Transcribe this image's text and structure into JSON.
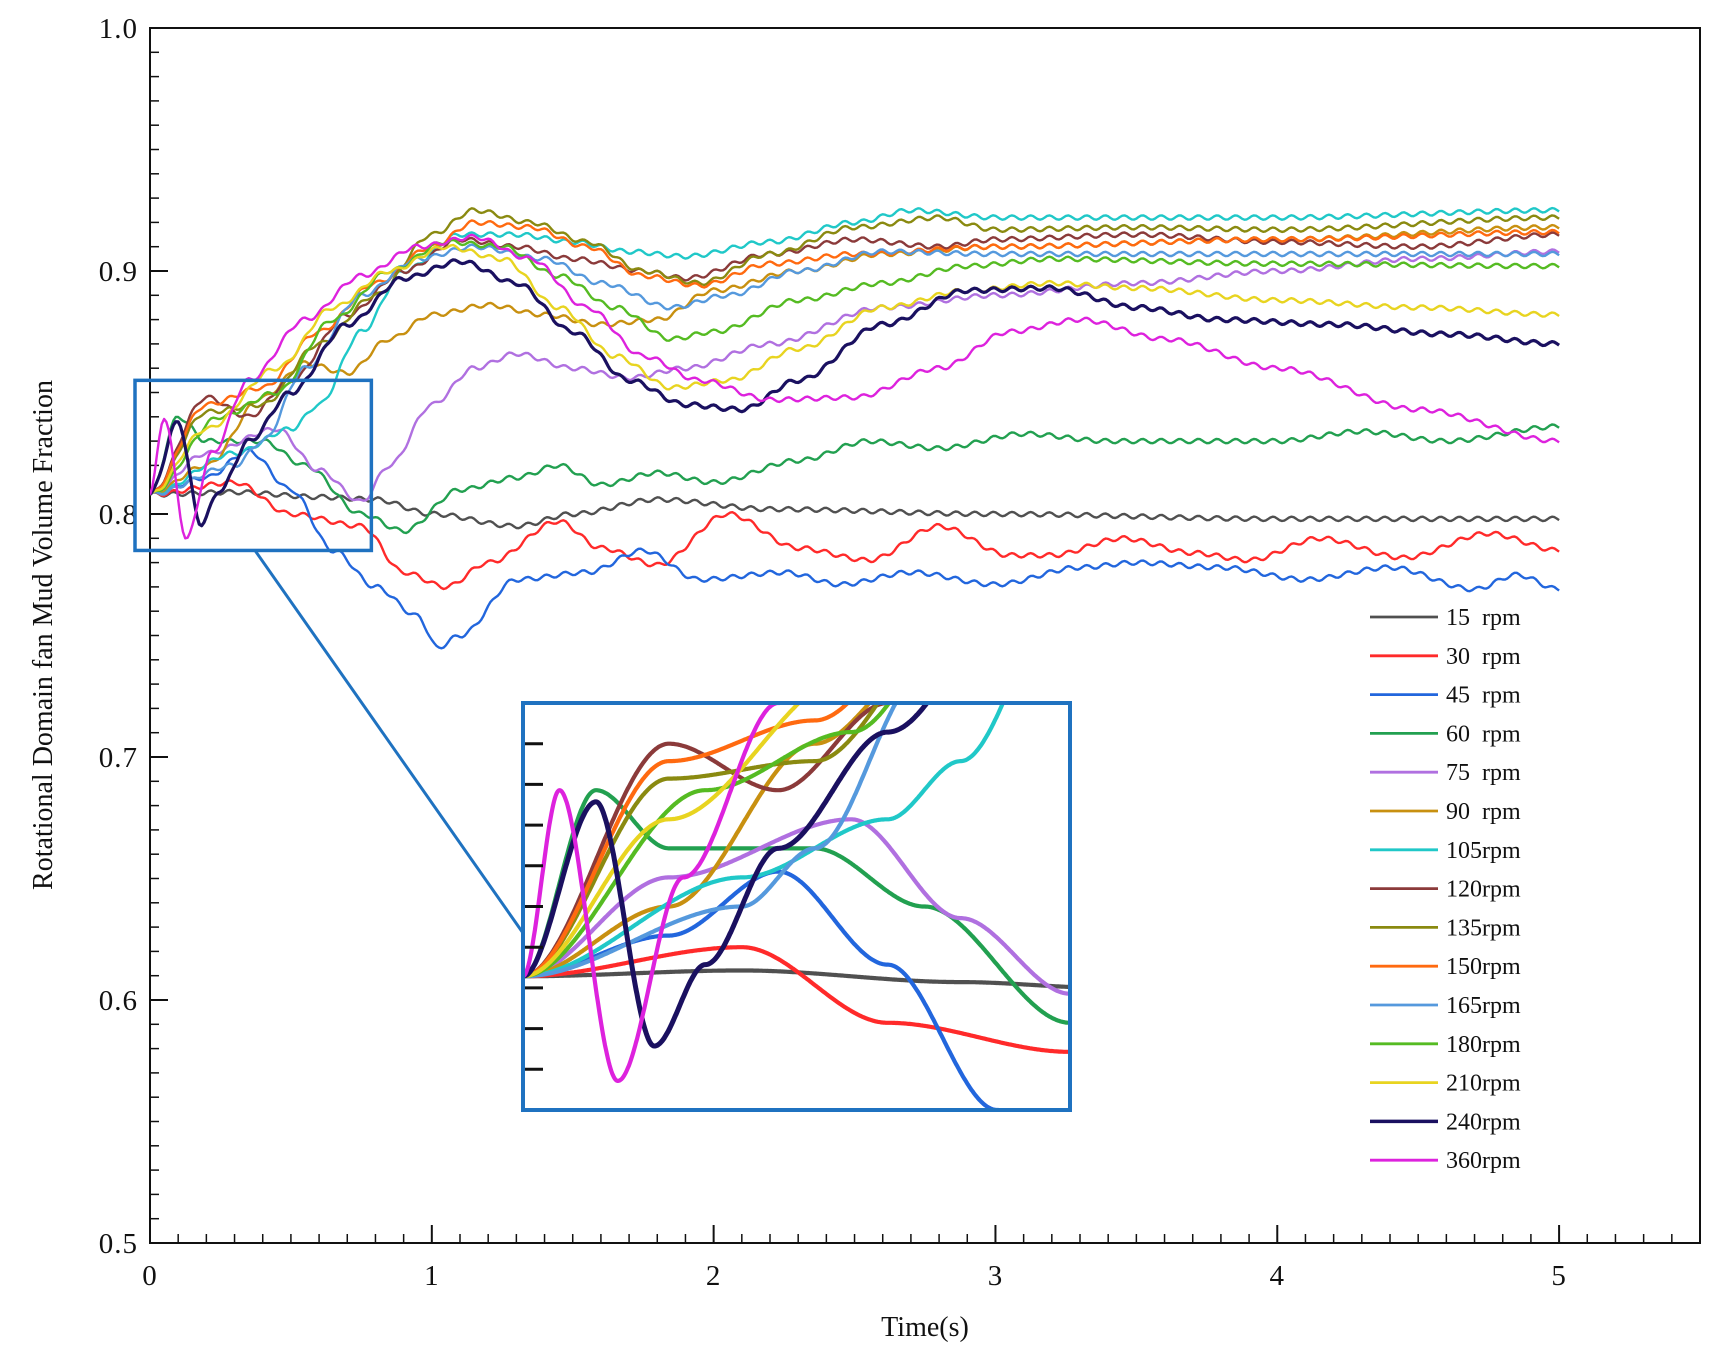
{
  "chart_data": {
    "type": "line",
    "title": "",
    "xlabel": "Time(s)",
    "ylabel": "Rotational Domain fan Mud Volume Fraction",
    "xlim": [
      0,
      5.5
    ],
    "ylim": [
      0.5,
      1.0
    ],
    "xticks": [
      "0",
      "1",
      "2",
      "3",
      "4",
      "5"
    ],
    "yticks": [
      "0.5",
      "0.6",
      "0.7",
      "0.8",
      "0.9",
      "1.0"
    ],
    "grid": false,
    "legend_position": "bottom-right",
    "inset": {
      "description": "zoom of early transient",
      "x_range": [
        0,
        0.75
      ],
      "y_range": [
        0.785,
        0.855
      ]
    },
    "series": [
      {
        "name": "15  rpm",
        "color": "#505050",
        "points": [
          [
            0,
            0.808
          ],
          [
            0.3,
            0.809
          ],
          [
            0.6,
            0.807
          ],
          [
            0.8,
            0.806
          ],
          [
            1.0,
            0.8
          ],
          [
            1.3,
            0.795
          ],
          [
            1.5,
            0.8
          ],
          [
            1.8,
            0.806
          ],
          [
            2.2,
            0.802
          ],
          [
            3.0,
            0.8
          ],
          [
            4.0,
            0.798
          ],
          [
            5.0,
            0.798
          ]
        ]
      },
      {
        "name": "30  rpm",
        "color": "#ff2a2a",
        "points": [
          [
            0,
            0.808
          ],
          [
            0.3,
            0.813
          ],
          [
            0.5,
            0.8
          ],
          [
            0.75,
            0.795
          ],
          [
            0.9,
            0.776
          ],
          [
            1.05,
            0.77
          ],
          [
            1.2,
            0.78
          ],
          [
            1.45,
            0.797
          ],
          [
            1.6,
            0.786
          ],
          [
            1.8,
            0.779
          ],
          [
            2.05,
            0.8
          ],
          [
            2.3,
            0.786
          ],
          [
            2.55,
            0.781
          ],
          [
            2.8,
            0.795
          ],
          [
            3.05,
            0.783
          ],
          [
            3.2,
            0.783
          ],
          [
            3.45,
            0.79
          ],
          [
            3.7,
            0.784
          ],
          [
            3.9,
            0.781
          ],
          [
            4.15,
            0.79
          ],
          [
            4.45,
            0.782
          ],
          [
            4.75,
            0.792
          ],
          [
            5.0,
            0.785
          ]
        ]
      },
      {
        "name": "45  rpm",
        "color": "#2266dd",
        "points": [
          [
            0,
            0.808
          ],
          [
            0.2,
            0.815
          ],
          [
            0.35,
            0.826
          ],
          [
            0.5,
            0.81
          ],
          [
            0.65,
            0.785
          ],
          [
            0.8,
            0.77
          ],
          [
            0.95,
            0.758
          ],
          [
            1.02,
            0.745
          ],
          [
            1.1,
            0.75
          ],
          [
            1.3,
            0.773
          ],
          [
            1.55,
            0.776
          ],
          [
            1.75,
            0.785
          ],
          [
            1.95,
            0.773
          ],
          [
            2.25,
            0.776
          ],
          [
            2.45,
            0.771
          ],
          [
            2.7,
            0.776
          ],
          [
            3.0,
            0.771
          ],
          [
            3.3,
            0.778
          ],
          [
            3.5,
            0.78
          ],
          [
            3.8,
            0.778
          ],
          [
            4.1,
            0.773
          ],
          [
            4.4,
            0.778
          ],
          [
            4.7,
            0.769
          ],
          [
            4.85,
            0.775
          ],
          [
            5.0,
            0.769
          ]
        ]
      },
      {
        "name": "60  rpm",
        "color": "#22a050",
        "points": [
          [
            0,
            0.808
          ],
          [
            0.1,
            0.84
          ],
          [
            0.2,
            0.83
          ],
          [
            0.4,
            0.83
          ],
          [
            0.55,
            0.82
          ],
          [
            0.75,
            0.8
          ],
          [
            0.9,
            0.793
          ],
          [
            1.1,
            0.81
          ],
          [
            1.3,
            0.815
          ],
          [
            1.45,
            0.82
          ],
          [
            1.6,
            0.812
          ],
          [
            1.8,
            0.817
          ],
          [
            2.0,
            0.813
          ],
          [
            2.3,
            0.822
          ],
          [
            2.55,
            0.83
          ],
          [
            2.8,
            0.827
          ],
          [
            3.1,
            0.833
          ],
          [
            3.4,
            0.83
          ],
          [
            3.7,
            0.83
          ],
          [
            4.0,
            0.83
          ],
          [
            4.3,
            0.834
          ],
          [
            4.6,
            0.83
          ],
          [
            5.0,
            0.836
          ]
        ]
      },
      {
        "name": "75  rpm",
        "color": "#b070e0",
        "points": [
          [
            0,
            0.808
          ],
          [
            0.2,
            0.825
          ],
          [
            0.45,
            0.835
          ],
          [
            0.6,
            0.818
          ],
          [
            0.75,
            0.805
          ],
          [
            0.85,
            0.82
          ],
          [
            1.0,
            0.845
          ],
          [
            1.15,
            0.86
          ],
          [
            1.3,
            0.866
          ],
          [
            1.5,
            0.86
          ],
          [
            1.7,
            0.856
          ],
          [
            1.9,
            0.86
          ],
          [
            2.2,
            0.87
          ],
          [
            2.6,
            0.885
          ],
          [
            3.0,
            0.89
          ],
          [
            3.5,
            0.895
          ],
          [
            4.0,
            0.9
          ],
          [
            4.5,
            0.905
          ],
          [
            5.0,
            0.908
          ]
        ]
      },
      {
        "name": "90  rpm",
        "color": "#c89010",
        "points": [
          [
            0,
            0.808
          ],
          [
            0.2,
            0.82
          ],
          [
            0.4,
            0.848
          ],
          [
            0.55,
            0.862
          ],
          [
            0.7,
            0.858
          ],
          [
            0.85,
            0.872
          ],
          [
            1.0,
            0.882
          ],
          [
            1.2,
            0.886
          ],
          [
            1.4,
            0.882
          ],
          [
            1.6,
            0.878
          ],
          [
            1.8,
            0.88
          ],
          [
            2.0,
            0.892
          ],
          [
            2.3,
            0.9
          ],
          [
            2.6,
            0.907
          ],
          [
            3.0,
            0.91
          ],
          [
            4.0,
            0.913
          ],
          [
            5.0,
            0.918
          ]
        ]
      },
      {
        "name": "105rpm",
        "color": "#20c8c8",
        "points": [
          [
            0,
            0.808
          ],
          [
            0.3,
            0.825
          ],
          [
            0.5,
            0.835
          ],
          [
            0.6,
            0.845
          ],
          [
            0.75,
            0.875
          ],
          [
            0.9,
            0.9
          ],
          [
            1.1,
            0.915
          ],
          [
            1.3,
            0.915
          ],
          [
            1.5,
            0.912
          ],
          [
            1.7,
            0.908
          ],
          [
            1.9,
            0.906
          ],
          [
            2.2,
            0.912
          ],
          [
            2.5,
            0.92
          ],
          [
            2.7,
            0.925
          ],
          [
            3.0,
            0.922
          ],
          [
            4.0,
            0.922
          ],
          [
            5.0,
            0.925
          ]
        ]
      },
      {
        "name": "120rpm",
        "color": "#8b3a3a",
        "points": [
          [
            0,
            0.808
          ],
          [
            0.2,
            0.848
          ],
          [
            0.35,
            0.84
          ],
          [
            0.5,
            0.855
          ],
          [
            0.7,
            0.882
          ],
          [
            0.9,
            0.9
          ],
          [
            1.1,
            0.913
          ],
          [
            1.3,
            0.91
          ],
          [
            1.5,
            0.905
          ],
          [
            1.75,
            0.9
          ],
          [
            1.9,
            0.897
          ],
          [
            2.2,
            0.907
          ],
          [
            2.5,
            0.913
          ],
          [
            2.8,
            0.91
          ],
          [
            3.0,
            0.913
          ],
          [
            3.5,
            0.915
          ],
          [
            4.0,
            0.912
          ],
          [
            4.5,
            0.91
          ],
          [
            5.0,
            0.915
          ]
        ]
      },
      {
        "name": "135rpm",
        "color": "#8a8a10",
        "points": [
          [
            0,
            0.808
          ],
          [
            0.2,
            0.842
          ],
          [
            0.4,
            0.845
          ],
          [
            0.6,
            0.87
          ],
          [
            0.8,
            0.89
          ],
          [
            1.0,
            0.915
          ],
          [
            1.15,
            0.925
          ],
          [
            1.35,
            0.92
          ],
          [
            1.55,
            0.912
          ],
          [
            1.75,
            0.9
          ],
          [
            1.95,
            0.895
          ],
          [
            2.2,
            0.907
          ],
          [
            2.5,
            0.918
          ],
          [
            2.8,
            0.922
          ],
          [
            3.0,
            0.917
          ],
          [
            3.5,
            0.918
          ],
          [
            4.0,
            0.917
          ],
          [
            5.0,
            0.922
          ]
        ]
      },
      {
        "name": "150rpm",
        "color": "#ff6a10",
        "points": [
          [
            0,
            0.808
          ],
          [
            0.2,
            0.845
          ],
          [
            0.4,
            0.852
          ],
          [
            0.6,
            0.875
          ],
          [
            0.8,
            0.895
          ],
          [
            1.0,
            0.91
          ],
          [
            1.15,
            0.92
          ],
          [
            1.35,
            0.918
          ],
          [
            1.55,
            0.91
          ],
          [
            1.75,
            0.898
          ],
          [
            1.95,
            0.894
          ],
          [
            2.2,
            0.903
          ],
          [
            2.5,
            0.907
          ],
          [
            3.0,
            0.91
          ],
          [
            4.0,
            0.913
          ],
          [
            5.0,
            0.916
          ]
        ]
      },
      {
        "name": "165rpm",
        "color": "#5599dd",
        "points": [
          [
            0,
            0.808
          ],
          [
            0.3,
            0.82
          ],
          [
            0.4,
            0.83
          ],
          [
            0.55,
            0.86
          ],
          [
            0.75,
            0.89
          ],
          [
            0.95,
            0.905
          ],
          [
            1.15,
            0.91
          ],
          [
            1.4,
            0.905
          ],
          [
            1.6,
            0.895
          ],
          [
            1.85,
            0.885
          ],
          [
            2.05,
            0.89
          ],
          [
            2.3,
            0.9
          ],
          [
            2.6,
            0.908
          ],
          [
            3.0,
            0.907
          ],
          [
            4.0,
            0.907
          ],
          [
            5.0,
            0.907
          ]
        ]
      },
      {
        "name": "180rpm",
        "color": "#55bb22",
        "points": [
          [
            0,
            0.808
          ],
          [
            0.25,
            0.84
          ],
          [
            0.45,
            0.85
          ],
          [
            0.65,
            0.88
          ],
          [
            0.85,
            0.9
          ],
          [
            1.05,
            0.912
          ],
          [
            1.25,
            0.91
          ],
          [
            1.45,
            0.898
          ],
          [
            1.65,
            0.885
          ],
          [
            1.85,
            0.872
          ],
          [
            2.0,
            0.875
          ],
          [
            2.3,
            0.888
          ],
          [
            2.6,
            0.895
          ],
          [
            2.9,
            0.902
          ],
          [
            3.2,
            0.905
          ],
          [
            4.0,
            0.903
          ],
          [
            5.0,
            0.902
          ]
        ]
      },
      {
        "name": "210rpm",
        "color": "#e8d420",
        "points": [
          [
            0,
            0.808
          ],
          [
            0.2,
            0.835
          ],
          [
            0.45,
            0.86
          ],
          [
            0.65,
            0.885
          ],
          [
            0.85,
            0.9
          ],
          [
            1.05,
            0.91
          ],
          [
            1.25,
            0.905
          ],
          [
            1.45,
            0.885
          ],
          [
            1.65,
            0.865
          ],
          [
            1.85,
            0.852
          ],
          [
            2.05,
            0.855
          ],
          [
            2.3,
            0.868
          ],
          [
            2.6,
            0.885
          ],
          [
            2.9,
            0.892
          ],
          [
            3.2,
            0.895
          ],
          [
            3.5,
            0.893
          ],
          [
            4.0,
            0.888
          ],
          [
            4.5,
            0.885
          ],
          [
            5.0,
            0.882
          ]
        ]
      },
      {
        "name": "240rpm",
        "color": "#1a1060",
        "points": [
          [
            0,
            0.808
          ],
          [
            0.1,
            0.838
          ],
          [
            0.18,
            0.796
          ],
          [
            0.25,
            0.81
          ],
          [
            0.35,
            0.83
          ],
          [
            0.5,
            0.85
          ],
          [
            0.7,
            0.878
          ],
          [
            0.9,
            0.897
          ],
          [
            1.1,
            0.904
          ],
          [
            1.3,
            0.895
          ],
          [
            1.5,
            0.875
          ],
          [
            1.7,
            0.855
          ],
          [
            1.9,
            0.845
          ],
          [
            2.1,
            0.843
          ],
          [
            2.3,
            0.855
          ],
          [
            2.6,
            0.878
          ],
          [
            2.9,
            0.892
          ],
          [
            3.2,
            0.893
          ],
          [
            3.5,
            0.885
          ],
          [
            3.8,
            0.88
          ],
          [
            4.2,
            0.878
          ],
          [
            4.6,
            0.874
          ],
          [
            5.0,
            0.87
          ]
        ]
      },
      {
        "name": "360rpm",
        "color": "#dd22dd",
        "points": [
          [
            0,
            0.808
          ],
          [
            0.05,
            0.84
          ],
          [
            0.13,
            0.79
          ],
          [
            0.22,
            0.825
          ],
          [
            0.35,
            0.855
          ],
          [
            0.55,
            0.88
          ],
          [
            0.75,
            0.898
          ],
          [
            0.95,
            0.91
          ],
          [
            1.15,
            0.914
          ],
          [
            1.35,
            0.905
          ],
          [
            1.55,
            0.885
          ],
          [
            1.75,
            0.865
          ],
          [
            1.95,
            0.855
          ],
          [
            2.2,
            0.847
          ],
          [
            2.5,
            0.848
          ],
          [
            2.8,
            0.86
          ],
          [
            3.05,
            0.875
          ],
          [
            3.3,
            0.88
          ],
          [
            3.6,
            0.872
          ],
          [
            4.0,
            0.86
          ],
          [
            4.5,
            0.843
          ],
          [
            5.0,
            0.83
          ]
        ]
      }
    ]
  }
}
